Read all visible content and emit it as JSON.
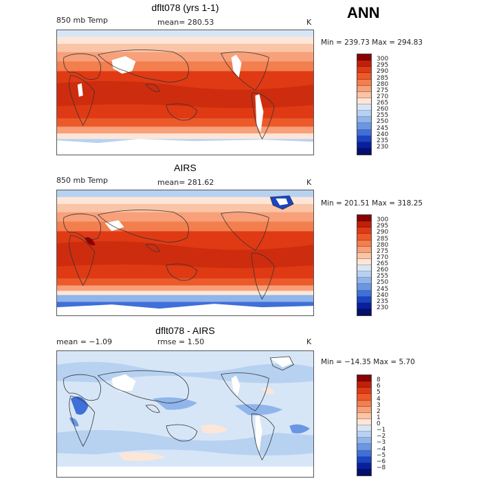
{
  "annotation": "ANN",
  "panels": [
    {
      "title": "dflt078 (yrs 1-1)",
      "variable": "850 mb Temp",
      "stat": "mean= 280.53",
      "units": "K",
      "minmax": "Min = 239.73 Max = 294.83",
      "levels": [
        "300",
        "295",
        "290",
        "285",
        "280",
        "275",
        "270",
        "265",
        "260",
        "255",
        "250",
        "245",
        "240",
        "235",
        "230"
      ],
      "colors": [
        "#8b0000",
        "#c0200a",
        "#df3a14",
        "#ec5a2a",
        "#f37e4e",
        "#f7a07a",
        "#fac4a6",
        "#fde6d8",
        "#d7e6f7",
        "#b7d1f1",
        "#8fb5eb",
        "#6a96e3",
        "#3f6fd8",
        "#1a44c4",
        "#0a1f9e",
        "#050f6e"
      ]
    },
    {
      "title": "AIRS",
      "variable": "850 mb Temp",
      "stat": "mean= 281.62",
      "units": "K",
      "minmax": "Min = 201.51 Max = 318.25",
      "levels": [
        "300",
        "295",
        "290",
        "285",
        "280",
        "275",
        "270",
        "265",
        "260",
        "255",
        "250",
        "245",
        "240",
        "235",
        "230"
      ],
      "colors": [
        "#8b0000",
        "#c0200a",
        "#df3a14",
        "#ec5a2a",
        "#f37e4e",
        "#f7a07a",
        "#fac4a6",
        "#fde6d8",
        "#d7e6f7",
        "#b7d1f1",
        "#8fb5eb",
        "#6a96e3",
        "#3f6fd8",
        "#1a44c4",
        "#0a1f9e",
        "#050f6e"
      ]
    },
    {
      "title": "dflt078 - AIRS",
      "stat_left": "mean = −1.09",
      "stat": "rmse =   1.50",
      "units": "K",
      "minmax": "Min = −14.35 Max =   5.70",
      "levels": [
        "8",
        "6",
        "5",
        "4",
        "3",
        "2",
        "1",
        "0",
        "−1",
        "−2",
        "−3",
        "−4",
        "−5",
        "−6",
        "−8"
      ],
      "colors": [
        "#8b0000",
        "#c0200a",
        "#df3a14",
        "#ec5a2a",
        "#f37e4e",
        "#f7a07a",
        "#fac4a6",
        "#fde6d8",
        "#d7e6f7",
        "#b7d1f1",
        "#8fb5eb",
        "#6a96e3",
        "#3f6fd8",
        "#1a44c4",
        "#0a1f9e",
        "#050f6e"
      ]
    }
  ]
}
